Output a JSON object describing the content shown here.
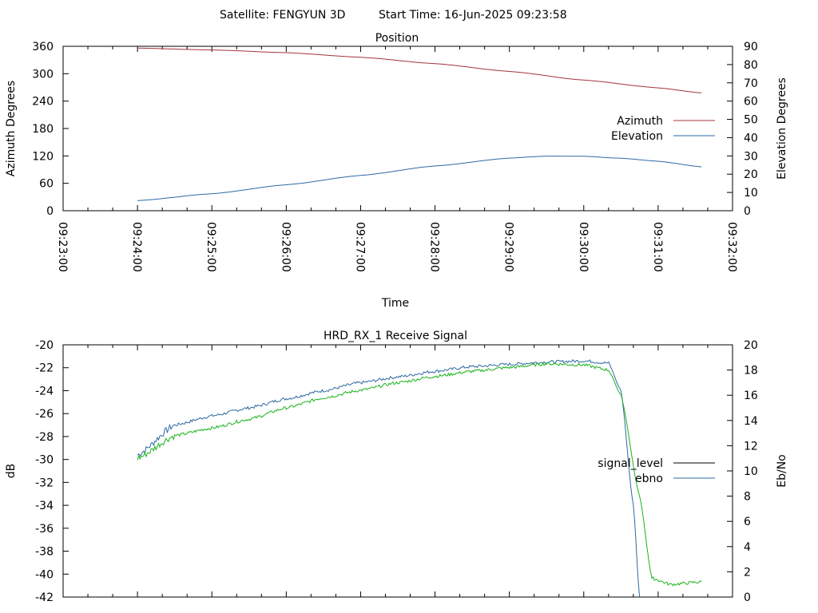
{
  "header": {
    "satellite": "Satellite: FENGYUN 3D",
    "start_time": "Start Time: 16-Jun-2025 09:23:58"
  },
  "colors": {
    "azimuth": "#a3343f",
    "elevation": "#2e6aa3",
    "signal_level": "#000000",
    "ebno_line": "#2e6aa3",
    "ebno_green": "#19b319"
  },
  "chart_data": [
    {
      "type": "line",
      "title": "Position",
      "xlabel": "Time",
      "ylabel": "Azimuth Degrees",
      "y2label": "Elevation Degrees",
      "xlim": [
        "09:23:00",
        "09:32:00"
      ],
      "x_ticks": [
        "09:23:00",
        "09:24:00",
        "09:25:00",
        "09:26:00",
        "09:27:00",
        "09:28:00",
        "09:29:00",
        "09:30:00",
        "09:31:00",
        "09:32:00"
      ],
      "ylim": [
        0,
        360
      ],
      "y_ticks": [
        0,
        60,
        120,
        180,
        240,
        300,
        360
      ],
      "y2lim": [
        0,
        90
      ],
      "y2_ticks": [
        0,
        10,
        20,
        30,
        40,
        50,
        60,
        70,
        80,
        90
      ],
      "legend_position": "right",
      "series": [
        {
          "name": "Azimuth",
          "axis": "y",
          "x": [
            "09:24:00",
            "09:25:00",
            "09:26:00",
            "09:27:00",
            "09:28:00",
            "09:29:00",
            "09:30:00",
            "09:31:00",
            "09:31:35"
          ],
          "values": [
            356,
            352,
            346,
            336,
            322,
            305,
            286,
            269,
            258
          ]
        },
        {
          "name": "Elevation",
          "axis": "y2",
          "x": [
            "09:24:00",
            "09:25:00",
            "09:26:00",
            "09:27:00",
            "09:28:00",
            "09:29:00",
            "09:29:30",
            "09:30:00",
            "09:30:30",
            "09:31:00",
            "09:31:35"
          ],
          "values": [
            5.5,
            9.3,
            14.2,
            19.3,
            24.5,
            28.8,
            29.9,
            29.8,
            28.7,
            27.1,
            24.0
          ]
        }
      ]
    },
    {
      "type": "line",
      "title": "HRD_RX_1 Receive Signal",
      "ylabel": "dB",
      "y2label": "Eb/No",
      "xlim": [
        "09:23:00",
        "09:32:00"
      ],
      "ylim": [
        -42,
        -20
      ],
      "y_ticks": [
        -42,
        -40,
        -38,
        -36,
        -34,
        -32,
        -30,
        -28,
        -26,
        -24,
        -22,
        -20
      ],
      "y2lim": [
        0,
        20
      ],
      "y2_ticks": [
        0,
        2,
        4,
        6,
        8,
        10,
        12,
        14,
        16,
        18,
        20
      ],
      "legend_position": "right",
      "series": [
        {
          "name": "signal_level",
          "axis": "y",
          "color_key": "ebno_line",
          "x": [
            "09:24:00",
            "09:24:30",
            "09:25:00",
            "09:25:30",
            "09:26:00",
            "09:26:30",
            "09:27:00",
            "09:27:30",
            "09:28:00",
            "09:28:30",
            "09:29:00",
            "09:29:30",
            "09:30:00",
            "09:30:20",
            "09:30:30",
            "09:30:40",
            "09:30:45"
          ],
          "values": [
            -29.6,
            -27.0,
            -26.2,
            -25.5,
            -24.7,
            -24.0,
            -23.3,
            -22.8,
            -22.3,
            -21.9,
            -21.7,
            -21.5,
            -21.4,
            -21.6,
            -24.0,
            -34.0,
            -42.0
          ]
        },
        {
          "name": "ebno",
          "axis": "y2",
          "color_key": "ebno_green",
          "x": [
            "09:24:00",
            "09:24:30",
            "09:25:00",
            "09:25:30",
            "09:26:00",
            "09:26:30",
            "09:27:00",
            "09:27:30",
            "09:28:00",
            "09:28:30",
            "09:29:00",
            "09:29:30",
            "09:30:00",
            "09:30:20",
            "09:30:30",
            "09:30:45",
            "09:30:55",
            "09:31:10",
            "09:31:35"
          ],
          "values": [
            11.0,
            12.8,
            13.4,
            14.1,
            15.0,
            15.8,
            16.4,
            17.0,
            17.5,
            17.9,
            18.2,
            18.5,
            18.4,
            18.0,
            16.0,
            8.0,
            1.5,
            1.0,
            1.2
          ]
        }
      ]
    }
  ]
}
